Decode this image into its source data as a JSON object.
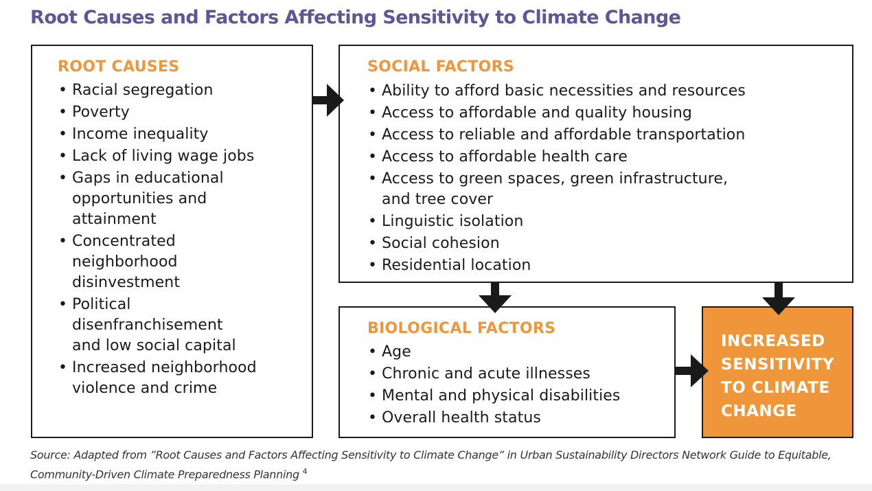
{
  "title": "Root Causes and Factors Affecting Sensitivity to Climate Change",
  "root_causes": {
    "heading": "ROOT CAUSES",
    "items": [
      "Racial segregation",
      "Poverty",
      "Income inequality",
      "Lack of living wage jobs",
      "Gaps in educational\nopportunities and\nattainment",
      "Concentrated\nneighborhood\ndisinvestment",
      "Political\ndisenfranchisement\nand low social capital",
      "Increased neighborhood\nviolence and crime"
    ]
  },
  "social_factors": {
    "heading": "SOCIAL FACTORS",
    "items": [
      "Ability to afford basic necessities and resources",
      "Access to affordable and quality housing",
      "Access to reliable and affordable transportation",
      "Access to affordable health care",
      "Access to green spaces, green infrastructure,\nand tree cover",
      "Linguistic isolation",
      "Social cohesion",
      "Residential location"
    ]
  },
  "biological_factors": {
    "heading": "BIOLOGICAL FACTORS",
    "items": [
      "Age",
      "Chronic and acute illnesses",
      "Mental and physical disabilities",
      "Overall health status"
    ]
  },
  "outcome": {
    "label": "INCREASED\nSENSITIVITY\nTO CLIMATE\nCHANGE"
  },
  "source": {
    "text": "Source: Adapted from ”Root Causes and Factors Affecting Sensitivity to Climate Change” in Urban Sustainability Directors Network Guide to Equitable, Community-Driven Climate Preparedness Planning",
    "footnote": "4"
  },
  "colors": {
    "title": "#5c5796",
    "accent": "#f0963a",
    "border": "#1a1a1a"
  }
}
